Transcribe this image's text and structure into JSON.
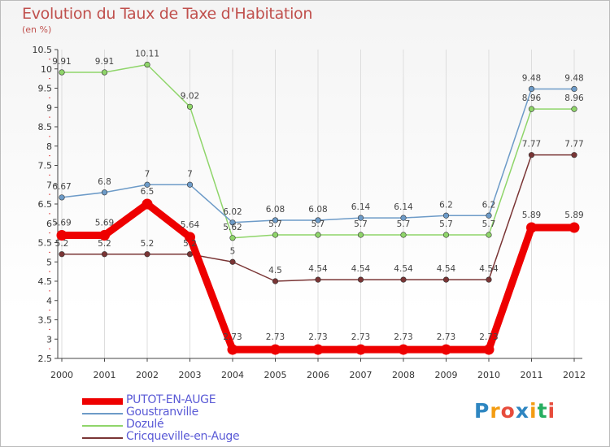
{
  "title": "Evolution du Taux de Taxe d'Habitation",
  "subtitle": "(en %)",
  "logo": {
    "text": "Proxiti",
    "letters": [
      "P",
      "r",
      "o",
      "x",
      "i",
      "t",
      "i"
    ],
    "colors": [
      "#2e86c1",
      "#f39c12",
      "#e74c3c",
      "#2e86c1",
      "#f39c12",
      "#27ae60",
      "#e74c3c"
    ]
  },
  "chart_data": {
    "type": "line",
    "title": "Evolution du Taux de Taxe d'Habitation",
    "ylabel": "(en %)",
    "xlabel": "",
    "categories": [
      "2000",
      "2001",
      "2002",
      "2003",
      "2004",
      "2005",
      "2006",
      "2007",
      "2008",
      "2009",
      "2010",
      "2011",
      "2012"
    ],
    "ylim": [
      2.5,
      10.5
    ],
    "yticks": [
      "2.5",
      "3",
      "3.5",
      "4",
      "4.5",
      "5",
      "5.5",
      "6",
      "6.5",
      "7",
      "7.5",
      "8",
      "8.5",
      "9",
      "9.5",
      "10",
      "10.5"
    ],
    "grid": "vertical",
    "legend": "bottom-left",
    "series": [
      {
        "name": "PUTOT-EN-AUGE",
        "color": "#ee0000",
        "width": 9,
        "values": [
          5.69,
          5.69,
          6.5,
          5.64,
          2.73,
          2.73,
          2.73,
          2.73,
          2.73,
          2.73,
          2.73,
          5.89,
          5.89
        ],
        "labels": [
          "5.69",
          "5.69",
          "6.5",
          "5.64",
          "2.73",
          "2.73",
          "2.73",
          "2.73",
          "2.73",
          "2.73",
          "2.73",
          "5.89",
          "5.89"
        ]
      },
      {
        "name": "Goustranville",
        "color": "#6d9bc8",
        "width": 1.5,
        "values": [
          6.67,
          6.8,
          7,
          7,
          6.02,
          6.08,
          6.08,
          6.14,
          6.14,
          6.2,
          6.2,
          9.48,
          9.48
        ],
        "labels": [
          "6.67",
          "6.8",
          "7",
          "7",
          "6.02",
          "6.08",
          "6.08",
          "6.14",
          "6.14",
          "6.2",
          "6.2",
          "9.48",
          "9.48"
        ]
      },
      {
        "name": "Dozulé",
        "color": "#8fd56a",
        "width": 1.5,
        "values": [
          9.91,
          9.91,
          10.11,
          9.02,
          5.62,
          5.7,
          5.7,
          5.7,
          5.7,
          5.7,
          5.7,
          8.96,
          8.96
        ],
        "labels": [
          "9.91",
          "9.91",
          "10.11",
          "9.02",
          "5.62",
          "5.7",
          "5.7",
          "5.7",
          "5.7",
          "5.7",
          "5.7",
          "8.96",
          "8.96"
        ]
      },
      {
        "name": "Cricqueville-en-Auge",
        "color": "#7a3535",
        "width": 1.5,
        "values": [
          5.2,
          5.2,
          5.2,
          5.2,
          5.0,
          4.5,
          4.54,
          4.54,
          4.54,
          4.54,
          4.54,
          7.77,
          7.77
        ],
        "labels": [
          "5.2",
          "5.2",
          "5.2",
          "5.2",
          "5",
          "4.5",
          "4.54",
          "4.54",
          "4.54",
          "4.54",
          "4.54",
          "7.77",
          "7.77"
        ]
      }
    ]
  }
}
